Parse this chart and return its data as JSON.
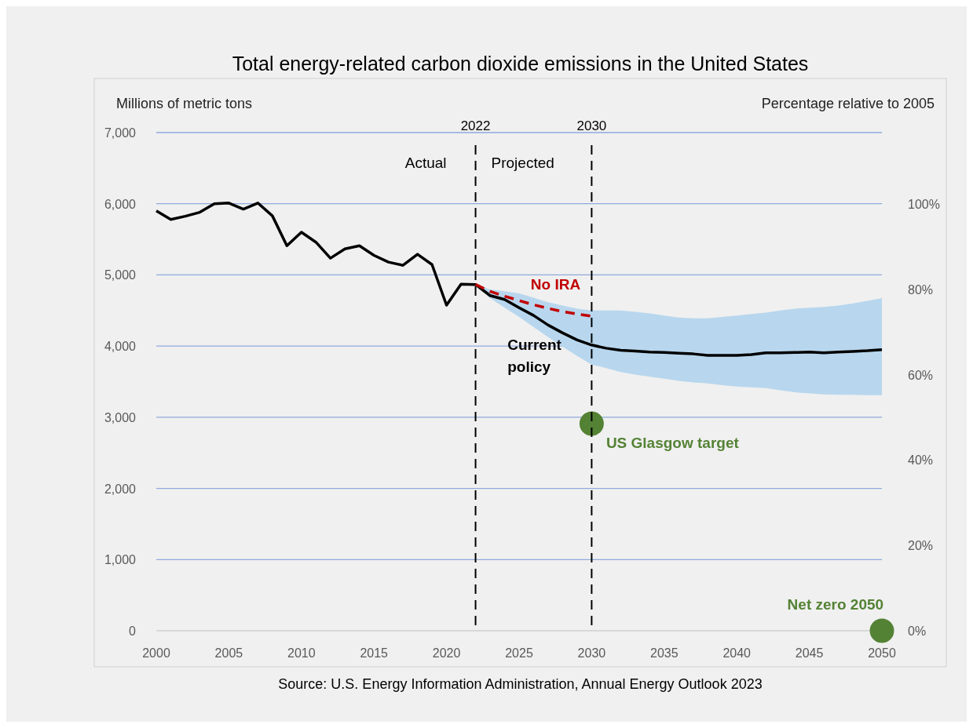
{
  "chart_data": {
    "type": "line",
    "title": "Total energy-related carbon dioxide emissions in the United States",
    "ylabel": "Millions of metric tons",
    "y2label": "Percentage relative to 2005",
    "xlim": [
      2000,
      2050
    ],
    "xticks": [
      2000,
      2005,
      2010,
      2015,
      2020,
      2025,
      2030,
      2035,
      2040,
      2045,
      2050
    ],
    "ylim": [
      0,
      7000
    ],
    "yticks": [
      0,
      {
        "value": 1000,
        "label": "1,000"
      },
      {
        "value": 2000,
        "label": "2,000"
      },
      {
        "value": 3000,
        "label": "3,000"
      },
      {
        "value": 4000,
        "label": "4,000"
      },
      {
        "value": 5000,
        "label": "5,000"
      },
      {
        "value": 6000,
        "label": "6,000"
      },
      {
        "value": 7000,
        "label": "7,000"
      }
    ],
    "y2lim": [
      0,
      116.7
    ],
    "y2ticks": [
      {
        "value": 0,
        "label": "0%"
      },
      {
        "value": 20,
        "label": "20%"
      },
      {
        "value": 40,
        "label": "40%"
      },
      {
        "value": 60,
        "label": "60%"
      },
      {
        "value": 80,
        "label": "80%"
      },
      {
        "value": 100,
        "label": "100%"
      }
    ],
    "grid": "y",
    "legend": false,
    "ref_lines": [
      {
        "axis": "x",
        "value": 2022,
        "label": "2022",
        "color": "#000000",
        "line_style": "dashed"
      },
      {
        "axis": "x",
        "value": 2030,
        "label": "2030",
        "color": "#000000",
        "line_style": "dashed"
      }
    ],
    "annotations": [
      "Actual",
      "Projected",
      "Source: U.S. Energy Information Administration, Annual Energy Outlook 2023"
    ],
    "series": [
      {
        "name": "Current policy",
        "color": "#000000",
        "marker": "none",
        "line_style": "solid",
        "x": [
          2000,
          2001,
          2002,
          2003,
          2004,
          2005,
          2006,
          2007,
          2008,
          2009,
          2010,
          2011,
          2012,
          2013,
          2014,
          2015,
          2016,
          2017,
          2018,
          2019,
          2020,
          2021,
          2022,
          2023,
          2024,
          2025,
          2026,
          2027,
          2028,
          2029,
          2030,
          2031,
          2032,
          2033,
          2034,
          2035,
          2036,
          2037,
          2038,
          2039,
          2040,
          2041,
          2042,
          2043,
          2044,
          2045,
          2046,
          2047,
          2048,
          2049,
          2050
        ],
        "values": [
          5900,
          5780,
          5825,
          5880,
          6000,
          6010,
          5925,
          6010,
          5830,
          5410,
          5600,
          5460,
          5235,
          5365,
          5410,
          5275,
          5180,
          5135,
          5290,
          5145,
          4575,
          4870,
          4865,
          4710,
          4655,
          4540,
          4430,
          4295,
          4185,
          4085,
          4015,
          3970,
          3940,
          3930,
          3915,
          3910,
          3900,
          3890,
          3870,
          3870,
          3870,
          3880,
          3905,
          3905,
          3910,
          3915,
          3905,
          3915,
          3925,
          3935,
          3950
        ],
        "lower": [
          null,
          null,
          null,
          null,
          null,
          null,
          null,
          null,
          null,
          null,
          null,
          null,
          null,
          null,
          null,
          null,
          null,
          null,
          null,
          null,
          null,
          null,
          4865,
          4675,
          4540,
          4410,
          4265,
          4125,
          3990,
          3860,
          3740,
          3690,
          3635,
          3600,
          3570,
          3540,
          3510,
          3490,
          3475,
          3450,
          3430,
          3420,
          3410,
          3380,
          3350,
          3335,
          3320,
          3315,
          3315,
          3310,
          3310
        ],
        "upper": [
          null,
          null,
          null,
          null,
          null,
          null,
          null,
          null,
          null,
          null,
          null,
          null,
          null,
          null,
          null,
          null,
          null,
          null,
          null,
          null,
          null,
          null,
          4865,
          4795,
          4770,
          4740,
          4680,
          4615,
          4570,
          4525,
          4500,
          4500,
          4500,
          4480,
          4460,
          4430,
          4400,
          4390,
          4390,
          4410,
          4430,
          4450,
          4470,
          4500,
          4525,
          4540,
          4550,
          4570,
          4600,
          4635,
          4675
        ]
      },
      {
        "name": "No IRA",
        "color": "#c00000",
        "marker": "none",
        "line_style": "dashed",
        "x": [
          2022,
          2023,
          2024,
          2025,
          2026,
          2027,
          2028,
          2029,
          2030
        ],
        "values": [
          4865,
          4770,
          4700,
          4640,
          4580,
          4530,
          4485,
          4450,
          4420
        ]
      },
      {
        "name": "US Glasgow target",
        "type": "scatter",
        "color": "#548235",
        "marker": "circle",
        "x": [
          2030
        ],
        "values": [
          2910
        ]
      },
      {
        "name": "Net zero 2050",
        "type": "scatter",
        "color": "#548235",
        "marker": "circle",
        "x": [
          2050
        ],
        "values": [
          0
        ]
      }
    ]
  }
}
